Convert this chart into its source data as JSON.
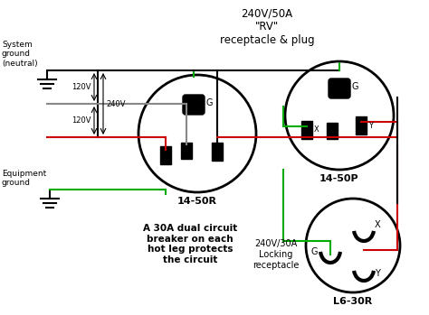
{
  "bg_color": "#ffffff",
  "title": "240V/50A\n\"RV\"\nreceptacle & plug",
  "label_14_50R": "14-50R",
  "label_14_50P": "14-50P",
  "label_L6_30R": "L6-30R",
  "label_240V30A": "240V/30A\nLocking\nreceptacle",
  "label_breaker": "A 30A dual circuit\nbreaker on each\nhot leg protects\nthe circuit",
  "label_sys_ground": "System\nground\n(neutral)",
  "label_eq_ground": "Equipment\nground",
  "label_120V_top": "120V",
  "label_120V_bot": "120V",
  "label_240V": "240V",
  "color_green": "#00aa00",
  "color_red": "#cc0000",
  "color_black": "#000000",
  "color_gray": "#888888",
  "color_white": "#ffffff"
}
